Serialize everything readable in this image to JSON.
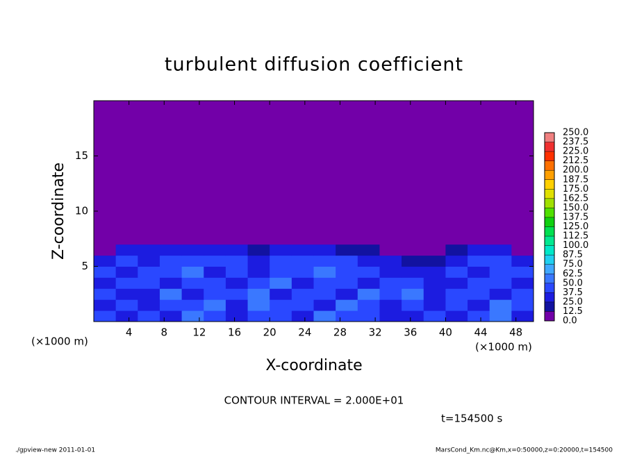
{
  "chart_data": {
    "type": "contour",
    "title": "turbulent diffusion coefficient",
    "x_label": "X-coordinate",
    "y_label": "Z-coordinate",
    "x_unit": "(×1000 m)",
    "y_unit": "(×1000 m)",
    "xlim": [
      0,
      50
    ],
    "ylim": [
      0,
      20
    ],
    "xticks": [
      4,
      8,
      12,
      16,
      20,
      24,
      28,
      32,
      36,
      40,
      44,
      48
    ],
    "yticks": [
      5,
      10,
      15
    ],
    "x_bins": [
      0,
      2.5,
      5,
      7.5,
      10,
      12.5,
      15,
      17.5,
      20,
      22.5,
      25,
      27.5,
      30,
      32.5,
      35,
      37.5,
      40,
      42.5,
      45,
      47.5,
      50
    ],
    "z_bins": [
      0,
      1,
      2,
      3,
      4,
      5,
      6,
      7,
      20
    ],
    "values": [
      [
        40,
        35,
        45,
        30,
        50,
        40,
        35,
        45,
        40,
        35,
        50,
        40,
        45,
        30,
        35,
        40,
        30,
        45,
        55,
        35
      ],
      [
        35,
        40,
        30,
        45,
        40,
        50,
        30,
        60,
        45,
        40,
        35,
        55,
        40,
        35,
        45,
        30,
        40,
        35,
        50,
        40
      ],
      [
        40,
        30,
        35,
        50,
        35,
        45,
        40,
        55,
        30,
        45,
        40,
        35,
        60,
        40,
        50,
        35,
        45,
        40,
        35,
        45
      ],
      [
        35,
        45,
        40,
        35,
        45,
        40,
        35,
        40,
        50,
        35,
        45,
        40,
        35,
        45,
        40,
        30,
        35,
        45,
        40,
        35
      ],
      [
        40,
        35,
        45,
        40,
        55,
        35,
        40,
        35,
        45,
        40,
        50,
        45,
        40,
        35,
        30,
        25,
        40,
        35,
        45,
        40
      ],
      [
        35,
        40,
        35,
        45,
        40,
        45,
        40,
        30,
        40,
        45,
        40,
        40,
        35,
        30,
        20,
        15,
        35,
        40,
        40,
        35
      ],
      [
        10,
        30,
        25,
        35,
        30,
        35,
        25,
        15,
        30,
        30,
        30,
        20,
        15,
        10,
        8,
        5,
        20,
        35,
        30,
        10
      ],
      [
        5,
        5,
        5,
        5,
        5,
        5,
        5,
        5,
        5,
        5,
        5,
        5,
        5,
        5,
        5,
        5,
        5,
        5,
        5,
        5
      ]
    ],
    "levels": [
      {
        "value": 0,
        "label": "0.0"
      },
      {
        "value": 12.5,
        "label": "12.5"
      },
      {
        "value": 25,
        "label": "25.0"
      },
      {
        "value": 37.5,
        "label": "37.5"
      },
      {
        "value": 50,
        "label": "50.0"
      },
      {
        "value": 62.5,
        "label": "62.5"
      },
      {
        "value": 75,
        "label": "75.0"
      },
      {
        "value": 87.5,
        "label": "87.5"
      },
      {
        "value": 100,
        "label": "100.0"
      },
      {
        "value": 112.5,
        "label": "112.5"
      },
      {
        "value": 125,
        "label": "125.0"
      },
      {
        "value": 137.5,
        "label": "137.5"
      },
      {
        "value": 150,
        "label": "150.0"
      },
      {
        "value": 162.5,
        "label": "162.5"
      },
      {
        "value": 175,
        "label": "175.0"
      },
      {
        "value": 187.5,
        "label": "187.5"
      },
      {
        "value": 200,
        "label": "200.0"
      },
      {
        "value": 212.5,
        "label": "212.5"
      },
      {
        "value": 225,
        "label": "225.0"
      },
      {
        "value": 237.5,
        "label": "237.5"
      },
      {
        "value": 250,
        "label": "250.0"
      }
    ],
    "colors": [
      "#7200a8",
      "#1212a0",
      "#1c1ce0",
      "#2a48ff",
      "#3a78ff",
      "#40a8ff",
      "#20d0f0",
      "#00e8c8",
      "#00e890",
      "#00e050",
      "#10d010",
      "#50e000",
      "#a0e000",
      "#e0e000",
      "#ffd000",
      "#ffa000",
      "#ff7000",
      "#ff3000",
      "#f03030",
      "#f08080"
    ],
    "contour_interval": "CONTOUR INTERVAL = 2.000E+01",
    "time_label": "t=154500 s",
    "footer_left": "./gpview-new   2011-01-01",
    "footer_right": "MarsCond_Km.nc@Km,x=0:50000,z=0:20000,t=154500"
  }
}
